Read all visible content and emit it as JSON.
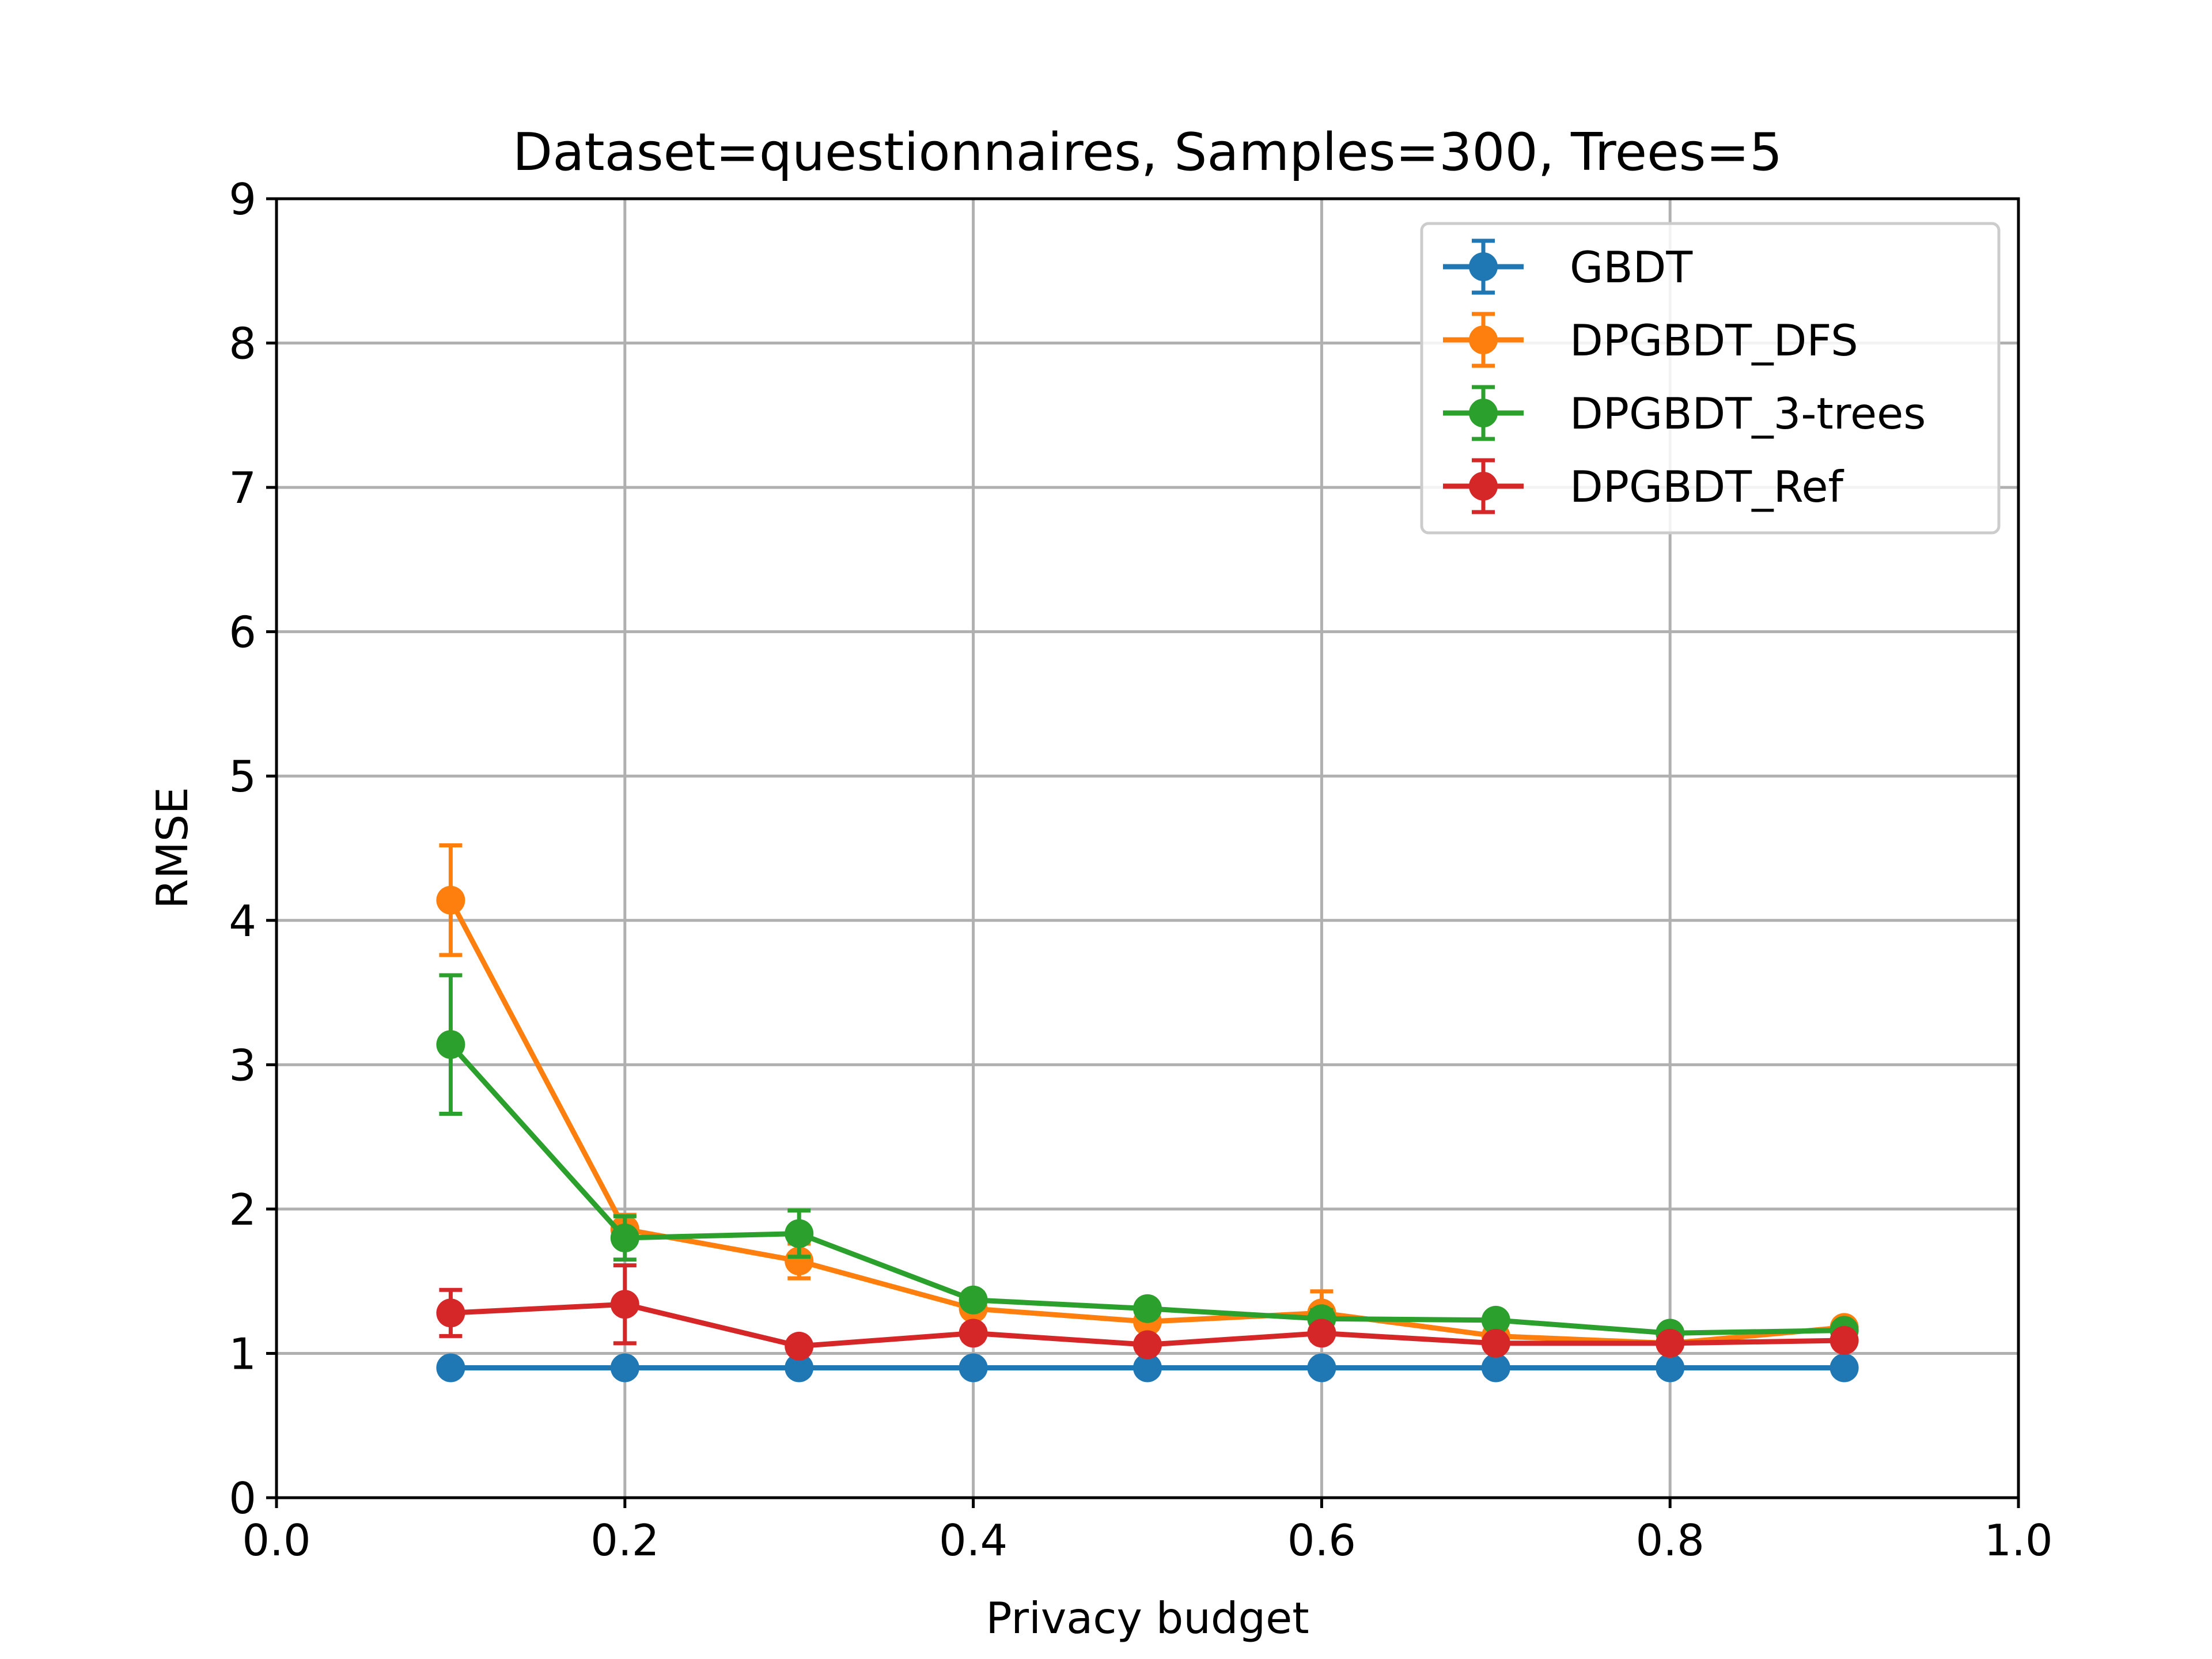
{
  "chart_data": {
    "type": "line",
    "title": "Dataset=questionnaires, Samples=300, Trees=5",
    "xlabel": "Privacy budget",
    "ylabel": "RMSE",
    "xlim": [
      0.0,
      1.0
    ],
    "ylim": [
      0,
      9
    ],
    "xticks": [
      0.0,
      0.2,
      0.4,
      0.6,
      0.8,
      1.0
    ],
    "xtick_labels": [
      "0.0",
      "0.2",
      "0.4",
      "0.6",
      "0.8",
      "1.0"
    ],
    "yticks": [
      0,
      1,
      2,
      3,
      4,
      5,
      6,
      7,
      8,
      9
    ],
    "ytick_labels": [
      "0",
      "1",
      "2",
      "3",
      "4",
      "5",
      "6",
      "7",
      "8",
      "9"
    ],
    "grid": true,
    "legend_position": "top-right",
    "x": [
      0.1,
      0.2,
      0.3,
      0.4,
      0.5,
      0.6,
      0.7,
      0.8,
      0.9
    ],
    "series": [
      {
        "name": "GBDT",
        "color": "#1f77b4",
        "values": [
          0.9,
          0.9,
          0.9,
          0.9,
          0.9,
          0.9,
          0.9,
          0.9,
          0.9
        ],
        "errors": [
          0.0,
          0.0,
          0.0,
          0.0,
          0.0,
          0.0,
          0.0,
          0.0,
          0.0
        ]
      },
      {
        "name": "DPGBDT_DFS",
        "color": "#ff7f0e",
        "values": [
          4.14,
          1.86,
          1.64,
          1.31,
          1.22,
          1.28,
          1.12,
          1.07,
          1.18
        ],
        "errors": [
          0.38,
          0.1,
          0.12,
          0.05,
          0.05,
          0.15,
          0.04,
          0.03,
          0.03
        ]
      },
      {
        "name": "DPGBDT_3-trees",
        "color": "#2ca02c",
        "values": [
          3.14,
          1.8,
          1.83,
          1.37,
          1.31,
          1.24,
          1.23,
          1.14,
          1.16
        ],
        "errors": [
          0.48,
          0.15,
          0.16,
          0.05,
          0.04,
          0.06,
          0.04,
          0.03,
          0.03
        ]
      },
      {
        "name": "DPGBDT_Ref",
        "color": "#d62728",
        "values": [
          1.28,
          1.34,
          1.05,
          1.14,
          1.06,
          1.14,
          1.07,
          1.07,
          1.09
        ],
        "errors": [
          0.16,
          0.27,
          0.03,
          0.05,
          0.03,
          0.05,
          0.03,
          0.03,
          0.02
        ]
      }
    ]
  }
}
